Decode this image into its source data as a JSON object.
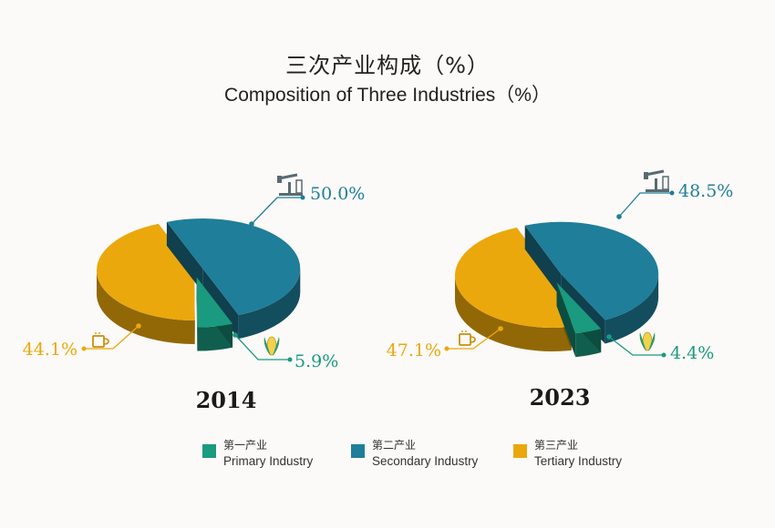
{
  "title": "三次产业构成（%）",
  "subtitle": "Composition of Three Industries（%）",
  "colors": {
    "primary": "#1a9a7e",
    "secondary": "#1f7e99",
    "tertiary": "#eba80c"
  },
  "chart_data": [
    {
      "type": "pie",
      "year_label": "2014",
      "slices": [
        {
          "name": "第一产业 Primary Industry",
          "value": 5.9,
          "label": "5.9%",
          "icon": "corn-icon"
        },
        {
          "name": "第二产业 Secondary Industry",
          "value": 50.0,
          "label": "50.0%",
          "icon": "oil-pump-icon"
        },
        {
          "name": "第三产业 Tertiary Industry",
          "value": 44.1,
          "label": "44.1%",
          "icon": "coffee-cup-icon"
        }
      ]
    },
    {
      "type": "pie",
      "year_label": "2023",
      "slices": [
        {
          "name": "第一产业 Primary Industry",
          "value": 4.4,
          "label": "4.4%",
          "icon": "corn-icon"
        },
        {
          "name": "第二产业 Secondary Industry",
          "value": 48.5,
          "label": "48.5%",
          "icon": "oil-pump-icon"
        },
        {
          "name": "第三产业 Tertiary Industry",
          "value": 47.1,
          "label": "47.1%",
          "icon": "coffee-cup-icon"
        }
      ]
    }
  ],
  "legend": [
    {
      "zh": "第一产业",
      "en": "Primary Industry"
    },
    {
      "zh": "第二产业",
      "en": "Secondary Industry"
    },
    {
      "zh": "第三产业",
      "en": "Tertiary Industry"
    }
  ]
}
